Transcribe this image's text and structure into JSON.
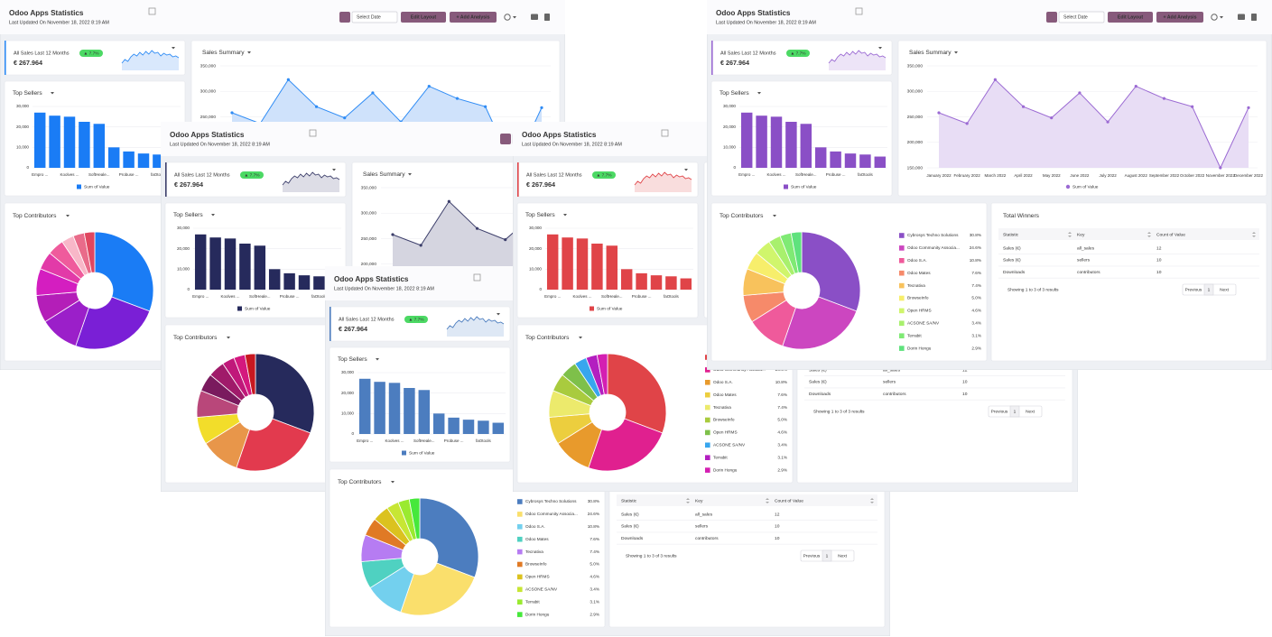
{
  "dashboard": {
    "header": {
      "title": "Odoo Apps Statistics",
      "updated": "Last Updated On November 18, 2022 8:19 AM",
      "date_placeholder": "Select Date",
      "edit_layout": "Edit Layout",
      "add_analysis": "+ Add Analysis"
    },
    "kpi": {
      "label": "All Sales Last 12 Months",
      "badge": "▲ 7.7%",
      "value": "€ 267.964"
    },
    "sales_summary": {
      "title": "Sales Summary",
      "x": [
        "January 2022",
        "February 2022",
        "March 2022",
        "April 2022",
        "May 2022",
        "June 2022",
        "July 2022",
        "August 2022",
        "September 2022",
        "October 2022",
        "November 2022",
        "December 2022"
      ],
      "values": [
        258000,
        237000,
        323000,
        270000,
        248000,
        297000,
        240000,
        310000,
        286000,
        270000,
        150000,
        268000
      ],
      "ylim": [
        150000,
        350000
      ],
      "yticks": [
        {
          "value": 150000,
          "label": "150,000"
        },
        {
          "value": 200000,
          "label": "200,000"
        },
        {
          "value": 250000,
          "label": "250,000"
        },
        {
          "value": 300000,
          "label": "300,000"
        },
        {
          "value": 350000,
          "label": "350,000"
        }
      ],
      "legend": "Sum of Value"
    },
    "top_sellers": {
      "title": "Top Sellers",
      "categories": [
        "Empro ...",
        null,
        "Koolves ...",
        null,
        "SoftHeale...",
        null,
        "Probuse ...",
        null,
        "faOtools",
        null
      ],
      "values": [
        27000,
        25500,
        25000,
        22500,
        21500,
        10000,
        8000,
        7000,
        6500,
        5500
      ],
      "ylim": [
        0,
        30000
      ],
      "yticks": [
        0,
        {
          "value": 10000,
          "label": "10,000"
        },
        {
          "value": 20000,
          "label": "20,000"
        },
        {
          "value": 30000,
          "label": "30,000"
        }
      ],
      "legend": "Sum of Value"
    },
    "top_contributors": {
      "title": "Top Contributors",
      "categories": [
        "Cybrosys Techno Solutions",
        "Odoo Community Associa...",
        "Odoo S.A.",
        "Odoo Mates",
        "Tecnativa",
        "BrowseInfo",
        "Open HRMS",
        "ACSONE SA/NV",
        "Terrabit",
        "Dorin Hongu"
      ],
      "values": [
        30.8,
        24.6,
        10.8,
        7.6,
        7.4,
        5.0,
        4.6,
        3.4,
        3.1,
        2.9
      ],
      "value_labels": [
        "30.8%",
        "24.6%",
        "10.8%",
        "7.6%",
        "7.4%",
        "5.0%",
        "4.6%",
        "3.4%",
        "3.1%",
        "2.9%"
      ]
    },
    "table": {
      "title": "Total Winners",
      "columns": [
        "Statistic",
        "Key",
        "Count of Value"
      ],
      "rows": [
        [
          "Sales (€)",
          "all_sales",
          12
        ],
        [
          "Sales (€)",
          "sellers",
          10
        ],
        [
          "Downloads",
          "contributors",
          10
        ]
      ],
      "footer": "Showing 1 to 3 of 3 results",
      "pager": [
        "Previous",
        "1",
        "Next"
      ]
    }
  },
  "panels": [
    {
      "bar_color": "#1a7cf5",
      "line_color": "#2f8cf5",
      "area_color": "#cfe2fb",
      "palette": [
        "#1a7cf5",
        "#7a1fd6",
        "#9b1fc9",
        "#b41eb8",
        "#d41ec0",
        "#e23aa8",
        "#ef5b9c",
        "#f8b7c8",
        "#e96b8a",
        "#e0465f"
      ]
    },
    {
      "bar_color": "#262a5c",
      "line_color": "#3d3f6b",
      "area_color": "#d5d5e0",
      "palette": [
        "#262a5c",
        "#e23a4e",
        "#e8964a",
        "#f2dd2a",
        "#b9477a",
        "#7a1a5e",
        "#a01a6a",
        "#c0187a",
        "#d4187e",
        "#c81820"
      ]
    },
    {
      "bar_color": "#4c7dbf",
      "line_color": "#4c7dbf",
      "area_color": "#d6e2f2",
      "palette": [
        "#4c7dbf",
        "#fadf6c",
        "#73d0ee",
        "#4fd1c1",
        "#b67cf2",
        "#e07a25",
        "#dbc21f",
        "#c7e634",
        "#9aea30",
        "#46e83b"
      ]
    },
    {
      "bar_color": "#e04448",
      "line_color": "#e04448",
      "area_color": "#f8d4d5",
      "palette": [
        "#e04448",
        "#e0208f",
        "#e89a2c",
        "#ecce3e",
        "#ecea6c",
        "#a9cb3e",
        "#7ec04a",
        "#38a6ee",
        "#b31fc0",
        "#d41fb2"
      ]
    },
    {
      "bar_color": "#8a4fc6",
      "line_color": "#9b6ad3",
      "area_color": "#e8ddf5",
      "palette": [
        "#8a4fc6",
        "#cc46c0",
        "#ef5a9b",
        "#f68a6a",
        "#f8c25c",
        "#f7ee6b",
        "#d0f56c",
        "#a8f06d",
        "#7fea74",
        "#5fe27d"
      ]
    }
  ]
}
